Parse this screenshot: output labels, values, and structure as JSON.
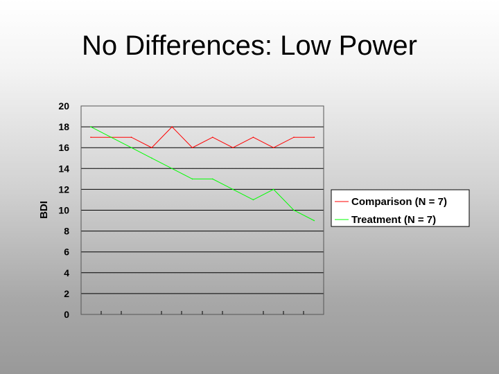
{
  "slide": {
    "title": "No Differences: Low Power"
  },
  "chart_data": {
    "type": "line",
    "title": "",
    "xlabel": "",
    "ylabel": "BDI",
    "ylim": [
      0,
      20
    ],
    "y_ticks": [
      0,
      2,
      4,
      6,
      8,
      10,
      12,
      14,
      16,
      18,
      20
    ],
    "grid": "horizontal",
    "legend_position": "right",
    "x": [
      1,
      2,
      3,
      4,
      5,
      6,
      7,
      8,
      9,
      10,
      11,
      12
    ],
    "series": [
      {
        "name": "Comparison (N = 7)",
        "color": "#ff0000",
        "values": [
          17,
          17,
          17,
          16,
          18,
          16,
          17,
          16,
          17,
          16,
          17,
          17
        ]
      },
      {
        "name": "Treatment (N = 7)",
        "color": "#00ff00",
        "values": [
          18,
          17,
          16,
          15,
          14,
          13,
          13,
          12,
          11,
          12,
          10,
          9
        ]
      }
    ]
  }
}
